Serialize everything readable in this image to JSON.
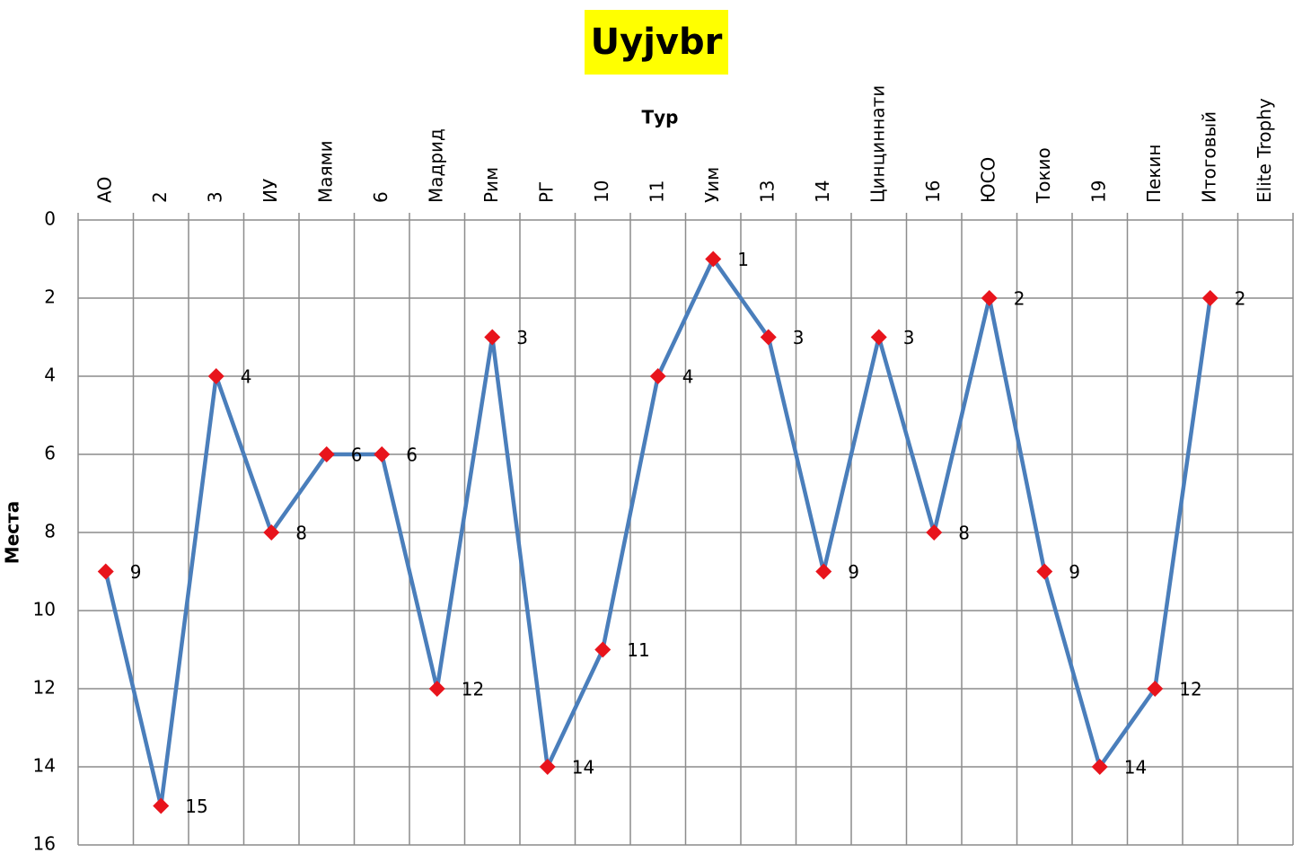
{
  "chart_data": {
    "type": "line",
    "title": "Uyjvbr",
    "x_label": "Тур",
    "y_label": "Места",
    "categories": [
      "АО",
      "2",
      "3",
      "ИУ",
      "Маями",
      "6",
      "Мадрид",
      "Рим",
      "РГ",
      "10",
      "11",
      "Уим",
      "13",
      "14",
      "Цинциннати",
      "16",
      "ЮСО",
      "Токио",
      "19",
      "Пекин",
      "Итоговый",
      "Elite Trophy"
    ],
    "series": [
      {
        "name": "Места",
        "color": "#4a7ebb",
        "marker_color": "#e8141c",
        "values": [
          9,
          15,
          4,
          8,
          6,
          6,
          12,
          3,
          14,
          11,
          4,
          1,
          3,
          9,
          3,
          8,
          2,
          9,
          14,
          12,
          2,
          null
        ]
      }
    ],
    "ylim": [
      0,
      16
    ],
    "yticks": [
      0,
      2,
      4,
      6,
      8,
      10,
      12,
      14,
      16
    ],
    "y_inverted": true,
    "grid": true,
    "data_labels": true
  }
}
